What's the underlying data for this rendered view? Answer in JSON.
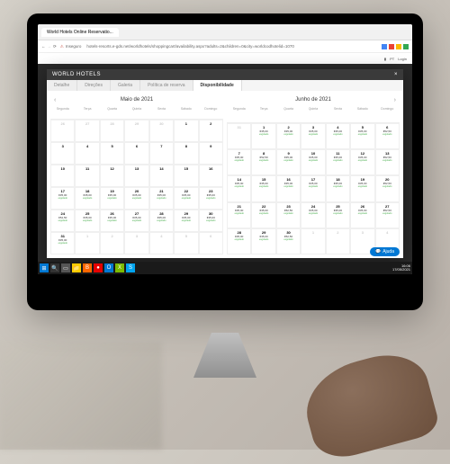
{
  "browser": {
    "tab_title": "World Hotels Online Reservatio...",
    "security": "Inseguro",
    "url": "hotels-resorts.e-gds.net/worldhotels/shoppingcart/availability.aspx?adults=2&children=0&city=worldcodhotelid=1070",
    "icon_colors": [
      "#4285f4",
      "#ea4335",
      "#fbbc05",
      "#34a853"
    ]
  },
  "page": {
    "lang": "PT",
    "login": "Login",
    "logo": "WORLD HOTELS"
  },
  "modal": {
    "title": "WORLD HOTELS",
    "tabs": [
      "Detalhe",
      "Direções",
      "Galeria",
      "Política de reserva",
      "Disponibilidade"
    ],
    "active_tab": 4
  },
  "calendar_left": {
    "title": "Maio de 2021",
    "dow": [
      "Segunda",
      "Terça",
      "Quarta",
      "Quinta",
      "Sexta",
      "Sábado",
      "Domingo"
    ],
    "cells": [
      {
        "d": 26,
        "dim": true
      },
      {
        "d": 27,
        "dim": true
      },
      {
        "d": 28,
        "dim": true
      },
      {
        "d": 29,
        "dim": true
      },
      {
        "d": 30,
        "dim": true
      },
      {
        "d": 1
      },
      {
        "d": 2
      },
      {
        "d": 3
      },
      {
        "d": 4
      },
      {
        "d": 5
      },
      {
        "d": 6
      },
      {
        "d": 7
      },
      {
        "d": 8
      },
      {
        "d": 9
      },
      {
        "d": 10
      },
      {
        "d": 11
      },
      {
        "d": 12
      },
      {
        "d": 13
      },
      {
        "d": 14
      },
      {
        "d": 15
      },
      {
        "d": 16
      },
      {
        "d": 17,
        "p": "€35,00",
        "s": "esgotado"
      },
      {
        "d": 18,
        "p": "€35,00",
        "s": "esgotado"
      },
      {
        "d": 19,
        "p": "€35,00",
        "s": "esgotado"
      },
      {
        "d": 20,
        "p": "€35,00",
        "s": "esgotado"
      },
      {
        "d": 21,
        "p": "€35,00",
        "s": "esgotado"
      },
      {
        "d": 22,
        "p": "€35,00",
        "s": "esgotado"
      },
      {
        "d": 23,
        "p": "€35,00",
        "s": "esgotado"
      },
      {
        "d": 24,
        "p": "€52,50",
        "s": "esgotado"
      },
      {
        "d": 25,
        "p": "€35,00",
        "s": "esgotado"
      },
      {
        "d": 26,
        "p": "€35,00",
        "s": "esgotado"
      },
      {
        "d": 27,
        "p": "€35,00",
        "s": "esgotado"
      },
      {
        "d": 28,
        "p": "€35,00",
        "s": "esgotado"
      },
      {
        "d": 29,
        "p": "€35,00",
        "s": "esgotado"
      },
      {
        "d": 30,
        "p": "€35,00",
        "s": "esgotado"
      },
      {
        "d": 31,
        "p": "€35,00",
        "s": "esgotado"
      },
      {
        "d": 1,
        "dim": true
      },
      {
        "d": 2,
        "dim": true
      },
      {
        "d": 3,
        "dim": true
      },
      {
        "d": 4,
        "dim": true
      },
      {
        "d": 5,
        "dim": true
      },
      {
        "d": 6,
        "dim": true
      }
    ]
  },
  "calendar_right": {
    "title": "Junho de 2021",
    "dow": [
      "Segunda",
      "Terça",
      "Quarta",
      "Quinta",
      "Sexta",
      "Sábado",
      "Domingo"
    ],
    "cells": [
      {
        "d": 31,
        "dim": true
      },
      {
        "d": 1,
        "p": "€35,00",
        "s": "esgotado"
      },
      {
        "d": 2,
        "p": "€35,00",
        "s": "esgotado"
      },
      {
        "d": 3,
        "p": "€35,00",
        "s": "esgotado"
      },
      {
        "d": 4,
        "p": "€35,00",
        "s": "esgotado"
      },
      {
        "d": 5,
        "p": "€35,00",
        "s": "esgotado"
      },
      {
        "d": 6,
        "p": "€52,50",
        "s": "esgotado"
      },
      {
        "d": 7,
        "p": "€35,00",
        "s": "esgotado"
      },
      {
        "d": 8,
        "p": "€52,50",
        "s": "esgotado"
      },
      {
        "d": 9,
        "p": "€35,00",
        "s": "esgotado"
      },
      {
        "d": 10,
        "p": "€35,00",
        "s": "esgotado"
      },
      {
        "d": 11,
        "p": "€35,00",
        "s": "esgotado"
      },
      {
        "d": 12,
        "p": "€35,00",
        "s": "esgotado"
      },
      {
        "d": 13,
        "p": "€52,50",
        "s": "esgotado"
      },
      {
        "d": 14,
        "p": "€35,00",
        "s": "esgotado"
      },
      {
        "d": 15,
        "p": "€35,00",
        "s": "esgotado"
      },
      {
        "d": 16,
        "p": "€35,00",
        "s": "esgotado"
      },
      {
        "d": 17,
        "p": "€35,00",
        "s": "esgotado"
      },
      {
        "d": 18,
        "p": "€35,00",
        "s": "esgotado"
      },
      {
        "d": 19,
        "p": "€35,00",
        "s": "esgotado"
      },
      {
        "d": 20,
        "p": "€52,50",
        "s": "esgotado"
      },
      {
        "d": 21,
        "p": "€35,00",
        "s": "esgotado"
      },
      {
        "d": 22,
        "p": "€35,00",
        "s": "esgotado"
      },
      {
        "d": 23,
        "p": "€52,50",
        "s": "esgotado"
      },
      {
        "d": 24,
        "p": "€35,00",
        "s": "esgotado"
      },
      {
        "d": 25,
        "p": "€35,00",
        "s": "esgotado"
      },
      {
        "d": 26,
        "p": "€35,00",
        "s": "esgotado"
      },
      {
        "d": 27,
        "p": "€52,50",
        "s": "esgotado"
      },
      {
        "d": 28,
        "p": "€35,00",
        "s": "esgotado"
      },
      {
        "d": 29,
        "p": "€35,00",
        "s": "esgotado"
      },
      {
        "d": 30,
        "p": "€52,50",
        "s": "esgotado"
      },
      {
        "d": 1,
        "dim": true
      },
      {
        "d": 2,
        "dim": true
      },
      {
        "d": 3,
        "dim": true
      },
      {
        "d": 4,
        "dim": true
      }
    ]
  },
  "help": {
    "label": "Ajuda"
  },
  "taskbar": {
    "icons": [
      {
        "bg": "#0078d4",
        "txt": "⊞"
      },
      {
        "bg": "#333",
        "txt": "🔍"
      },
      {
        "bg": "#555",
        "txt": "▭"
      },
      {
        "bg": "#ffcc00",
        "txt": "📁"
      },
      {
        "bg": "#ff6600",
        "txt": "B"
      },
      {
        "bg": "#e60000",
        "txt": "●"
      },
      {
        "bg": "#0078d4",
        "txt": "O"
      },
      {
        "bg": "#7cbb00",
        "txt": "X"
      },
      {
        "bg": "#00a4ef",
        "txt": "S"
      }
    ],
    "time": "16:06",
    "date": "17/05/2021"
  }
}
